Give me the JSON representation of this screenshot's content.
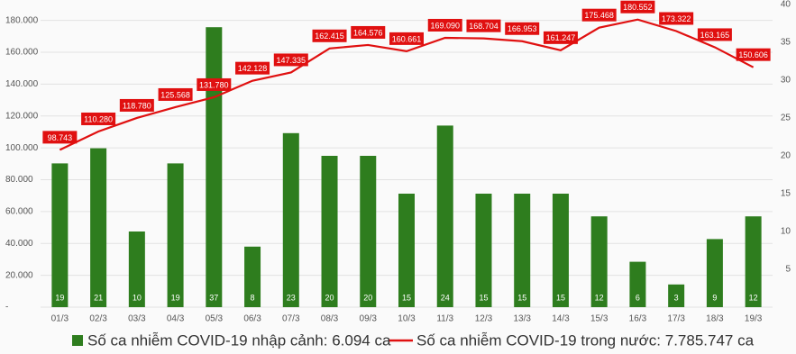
{
  "chart_data": {
    "type": "bar_line",
    "categories": [
      "01/3",
      "02/3",
      "03/3",
      "04/3",
      "05/3",
      "06/3",
      "07/3",
      "08/3",
      "09/3",
      "10/3",
      "11/3",
      "12/3",
      "13/3",
      "14/3",
      "15/3",
      "16/3",
      "17/3",
      "18/3",
      "19/3"
    ],
    "series": [
      {
        "name": "Số ca nhiễm COVID-19 nhập cảnh: 6.094 ca",
        "type": "bar",
        "axis": "y2",
        "color": "#2e7d1e",
        "values": [
          19,
          21,
          10,
          19,
          37,
          8,
          23,
          20,
          20,
          15,
          24,
          15,
          15,
          15,
          12,
          6,
          3,
          9,
          12
        ]
      },
      {
        "name": "Số ca nhiễm COVID-19 trong nước: 7.785.747 ca",
        "type": "line",
        "axis": "y",
        "color": "#e01010",
        "values": [
          98743,
          110280,
          118780,
          125568,
          131780,
          142128,
          147335,
          162415,
          164576,
          160661,
          169090,
          168704,
          166953,
          161247,
          175468,
          180552,
          173322,
          163165,
          150606
        ],
        "value_labels": [
          "98.743",
          "110.280",
          "118.780",
          "125.568",
          "131.780",
          "142.128",
          "147.335",
          "162.415",
          "164.576",
          "160.661",
          "169.090",
          "168.704",
          "166.953",
          "161.247",
          "175.468",
          "180.552",
          "173.322",
          "163.165",
          "150.606"
        ]
      }
    ],
    "ylim": [
      0,
      190000
    ],
    "yticks": [
      {
        "value": 0,
        "label": "-"
      },
      {
        "value": 20000,
        "label": "20.000"
      },
      {
        "value": 40000,
        "label": "40.000"
      },
      {
        "value": 60000,
        "label": "60.000"
      },
      {
        "value": 80000,
        "label": "80.000"
      },
      {
        "value": 100000,
        "label": "100.000"
      },
      {
        "value": 120000,
        "label": "120.000"
      },
      {
        "value": 140000,
        "label": "140.000"
      },
      {
        "value": 160000,
        "label": "160.000"
      },
      {
        "value": 180000,
        "label": "180.000"
      }
    ],
    "y2lim": [
      0,
      40
    ],
    "y2ticks": [
      5,
      10,
      15,
      20,
      25,
      30,
      35,
      40
    ],
    "grid": true
  }
}
